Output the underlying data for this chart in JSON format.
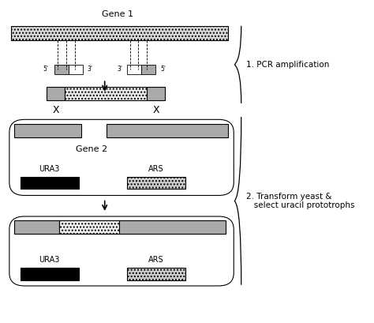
{
  "bg_color": "#ffffff",
  "fig_width": 4.74,
  "fig_height": 4.09,
  "dpi": 100,
  "gene1_label": "Gene 1",
  "gene2_label": "Gene 2",
  "ura3_label": "URA3",
  "ars_label": "ARS",
  "step1_label": "1. PCR amplification",
  "step2_line1": "2. Transform yeast &",
  "step2_line2": "   select uracil prototrophs",
  "five_prime": "5'",
  "three_prime": "3'",
  "gray_color": "#aaaaaa",
  "black": "#000000",
  "white": "#ffffff"
}
